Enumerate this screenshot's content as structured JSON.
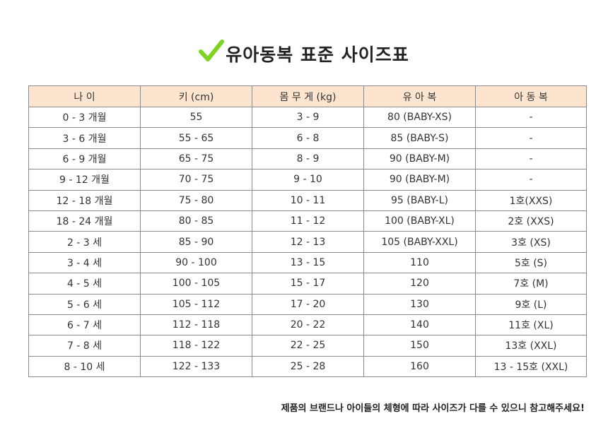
{
  "title": "유아동복 표준 사이즈표",
  "accent_color": "#7ed321",
  "header_bg_color": "#fce4cf",
  "icon": "check-icon",
  "table": {
    "columns": [
      "나 이",
      "키 (cm)",
      "몸 무 게 (kg)",
      "유 아 복",
      "아 동 복"
    ],
    "rows": [
      [
        "0 - 3 개월",
        "55",
        "3 - 9",
        "80 (BABY-XS)",
        "-"
      ],
      [
        "3 - 6 개월",
        "55 - 65",
        "6 - 8",
        "85 (BABY-S)",
        "-"
      ],
      [
        "6 - 9 개월",
        "65 - 75",
        "8 - 9",
        "90 (BABY-M)",
        "-"
      ],
      [
        "9 - 12 개월",
        "70 - 75",
        "9 - 10",
        "90 (BABY-M)",
        "-"
      ],
      [
        "12 - 18 개월",
        "75 - 80",
        "10 - 11",
        "95 (BABY-L)",
        "1호(XXS)"
      ],
      [
        "18 - 24 개월",
        "80 - 85",
        "11 - 12",
        "100 (BABY-XL)",
        "2호 (XXS)"
      ],
      [
        "2 - 3 세",
        "85 - 90",
        "12 - 13",
        "105 (BABY-XXL)",
        "3호 (XS)"
      ],
      [
        "3 - 4 세",
        "90 - 100",
        "13 - 15",
        "110",
        "5호 (S)"
      ],
      [
        "4 - 5 세",
        "100 - 105",
        "15 - 17",
        "120",
        "7호 (M)"
      ],
      [
        "5 - 6 세",
        "105 - 112",
        "17 - 20",
        "130",
        "9호 (L)"
      ],
      [
        "6 - 7 세",
        "112 - 118",
        "20 - 22",
        "140",
        "11호 (XL)"
      ],
      [
        "7 - 8 세",
        "118 - 122",
        "22 - 25",
        "150",
        "13호 (XXL)"
      ],
      [
        "8 - 10 세",
        "122 - 133",
        "25 - 28",
        "160",
        "13 - 15호 (XXL)"
      ]
    ]
  },
  "footnote": "제품의 브랜드나 아이들의 체형에 따라 사이즈가 다를 수 있으니 참고해주세요!"
}
